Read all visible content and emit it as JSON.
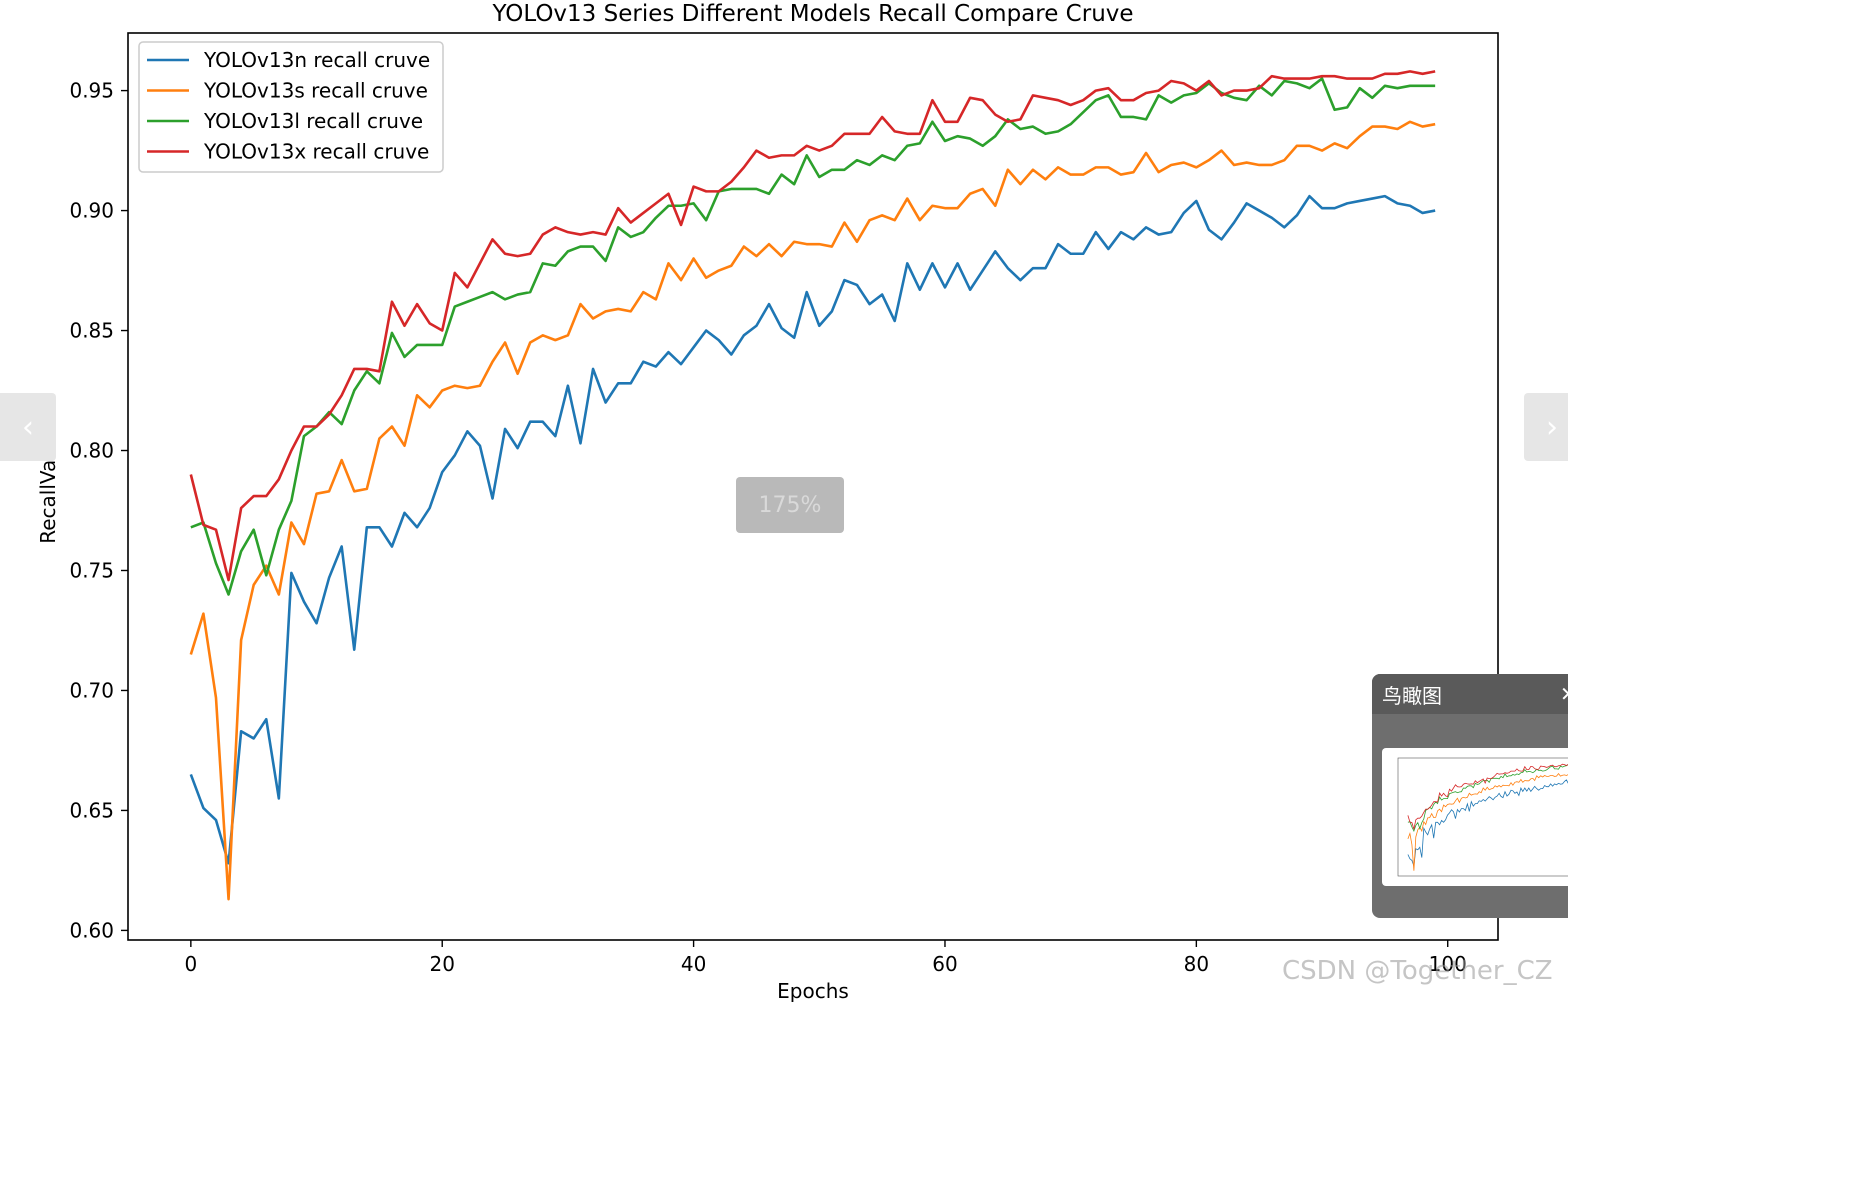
{
  "chart_data": {
    "type": "line",
    "title": "YOLOv13 Series Different Models Recall Compare Cruve",
    "xlabel": "Epochs",
    "ylabel": "RecallValue",
    "xlim": [
      -5,
      104
    ],
    "ylim": [
      0.596,
      0.974
    ],
    "xticks": [
      0,
      20,
      40,
      60,
      80,
      100
    ],
    "xtick_labels": [
      "0",
      "20",
      "40",
      "60",
      "80",
      "100"
    ],
    "yticks": [
      0.6,
      0.65,
      0.7,
      0.75,
      0.8,
      0.85,
      0.9,
      0.95
    ],
    "ytick_labels": [
      "0.60",
      "0.65",
      "0.70",
      "0.75",
      "0.80",
      "0.85",
      "0.90",
      "0.95"
    ],
    "grid": false,
    "legend_position": "top-left",
    "series": [
      {
        "name": "YOLOv13n recall cruve",
        "color": "#1f77b4",
        "values": [
          0.665,
          0.651,
          0.646,
          0.628,
          0.683,
          0.68,
          0.688,
          0.655,
          0.749,
          0.737,
          0.728,
          0.747,
          0.76,
          0.717,
          0.768,
          0.768,
          0.76,
          0.774,
          0.768,
          0.776,
          0.791,
          0.798,
          0.808,
          0.802,
          0.78,
          0.809,
          0.801,
          0.812,
          0.812,
          0.806,
          0.827,
          0.803,
          0.834,
          0.82,
          0.828,
          0.828,
          0.837,
          0.835,
          0.841,
          0.836,
          0.843,
          0.85,
          0.846,
          0.84,
          0.848,
          0.852,
          0.861,
          0.851,
          0.847,
          0.866,
          0.852,
          0.858,
          0.871,
          0.869,
          0.861,
          0.865,
          0.854,
          0.878,
          0.867,
          0.878,
          0.868,
          0.878,
          0.867,
          0.875,
          0.883,
          0.876,
          0.871,
          0.876,
          0.876,
          0.886,
          0.882,
          0.882,
          0.891,
          0.884,
          0.891,
          0.888,
          0.893,
          0.89,
          0.891,
          0.899,
          0.904,
          0.892,
          0.888,
          0.895,
          0.903,
          0.9,
          0.897,
          0.893,
          0.898,
          0.906,
          0.901,
          0.901,
          0.903,
          0.904,
          0.905,
          0.906,
          0.903,
          0.902,
          0.899,
          0.9
        ]
      },
      {
        "name": "YOLOv13s recall cruve",
        "color": "#ff7f0e",
        "values": [
          0.715,
          0.732,
          0.697,
          0.613,
          0.721,
          0.744,
          0.752,
          0.74,
          0.77,
          0.761,
          0.782,
          0.783,
          0.796,
          0.783,
          0.784,
          0.805,
          0.81,
          0.802,
          0.823,
          0.818,
          0.825,
          0.827,
          0.826,
          0.827,
          0.837,
          0.845,
          0.832,
          0.845,
          0.848,
          0.846,
          0.848,
          0.861,
          0.855,
          0.858,
          0.859,
          0.858,
          0.866,
          0.863,
          0.878,
          0.871,
          0.88,
          0.872,
          0.875,
          0.877,
          0.885,
          0.881,
          0.886,
          0.881,
          0.887,
          0.886,
          0.886,
          0.885,
          0.895,
          0.887,
          0.896,
          0.898,
          0.896,
          0.905,
          0.896,
          0.902,
          0.901,
          0.901,
          0.907,
          0.909,
          0.902,
          0.917,
          0.911,
          0.917,
          0.913,
          0.918,
          0.915,
          0.915,
          0.918,
          0.918,
          0.915,
          0.916,
          0.924,
          0.916,
          0.919,
          0.92,
          0.918,
          0.921,
          0.925,
          0.919,
          0.92,
          0.919,
          0.919,
          0.921,
          0.927,
          0.927,
          0.925,
          0.928,
          0.926,
          0.931,
          0.935,
          0.935,
          0.934,
          0.937,
          0.935,
          0.936
        ]
      },
      {
        "name": "YOLOv13l recall cruve",
        "color": "#2ca02c",
        "values": [
          0.768,
          0.77,
          0.753,
          0.74,
          0.758,
          0.767,
          0.748,
          0.767,
          0.779,
          0.806,
          0.81,
          0.816,
          0.811,
          0.825,
          0.833,
          0.828,
          0.849,
          0.839,
          0.844,
          0.844,
          0.844,
          0.86,
          0.862,
          0.864,
          0.866,
          0.863,
          0.865,
          0.866,
          0.878,
          0.877,
          0.883,
          0.885,
          0.885,
          0.879,
          0.893,
          0.889,
          0.891,
          0.897,
          0.902,
          0.902,
          0.903,
          0.896,
          0.908,
          0.909,
          0.909,
          0.909,
          0.907,
          0.915,
          0.911,
          0.923,
          0.914,
          0.917,
          0.917,
          0.921,
          0.919,
          0.923,
          0.921,
          0.927,
          0.928,
          0.937,
          0.929,
          0.931,
          0.93,
          0.927,
          0.931,
          0.938,
          0.934,
          0.935,
          0.932,
          0.933,
          0.936,
          0.941,
          0.946,
          0.948,
          0.939,
          0.939,
          0.938,
          0.948,
          0.945,
          0.948,
          0.949,
          0.953,
          0.949,
          0.947,
          0.946,
          0.952,
          0.948,
          0.954,
          0.953,
          0.951,
          0.955,
          0.942,
          0.943,
          0.951,
          0.947,
          0.952,
          0.951,
          0.952,
          0.952,
          0.952
        ]
      },
      {
        "name": "YOLOv13x recall cruve",
        "color": "#d62728",
        "values": [
          0.79,
          0.769,
          0.767,
          0.746,
          0.776,
          0.781,
          0.781,
          0.788,
          0.8,
          0.81,
          0.81,
          0.815,
          0.823,
          0.834,
          0.834,
          0.833,
          0.862,
          0.852,
          0.861,
          0.853,
          0.85,
          0.874,
          0.868,
          0.878,
          0.888,
          0.882,
          0.881,
          0.882,
          0.89,
          0.893,
          0.891,
          0.89,
          0.891,
          0.89,
          0.901,
          0.895,
          0.899,
          0.903,
          0.907,
          0.894,
          0.91,
          0.908,
          0.908,
          0.912,
          0.918,
          0.925,
          0.922,
          0.923,
          0.923,
          0.927,
          0.925,
          0.927,
          0.932,
          0.932,
          0.932,
          0.939,
          0.933,
          0.932,
          0.932,
          0.946,
          0.937,
          0.937,
          0.947,
          0.946,
          0.94,
          0.937,
          0.938,
          0.948,
          0.947,
          0.946,
          0.944,
          0.946,
          0.95,
          0.951,
          0.946,
          0.946,
          0.949,
          0.95,
          0.954,
          0.953,
          0.95,
          0.954,
          0.948,
          0.95,
          0.95,
          0.951,
          0.956,
          0.955,
          0.955,
          0.955,
          0.956,
          0.956,
          0.955,
          0.955,
          0.955,
          0.957,
          0.957,
          0.958,
          0.957,
          0.958
        ]
      }
    ]
  },
  "viewer": {
    "prev_icon": "chevron-left-icon",
    "prev_glyph": "‹",
    "next_icon": "chevron-right-icon",
    "next_glyph": "›",
    "zoom_label": "175%",
    "birdview_title": "鸟瞰图",
    "close_glyph": "✕",
    "watermark": "CSDN @Together_CZ"
  }
}
